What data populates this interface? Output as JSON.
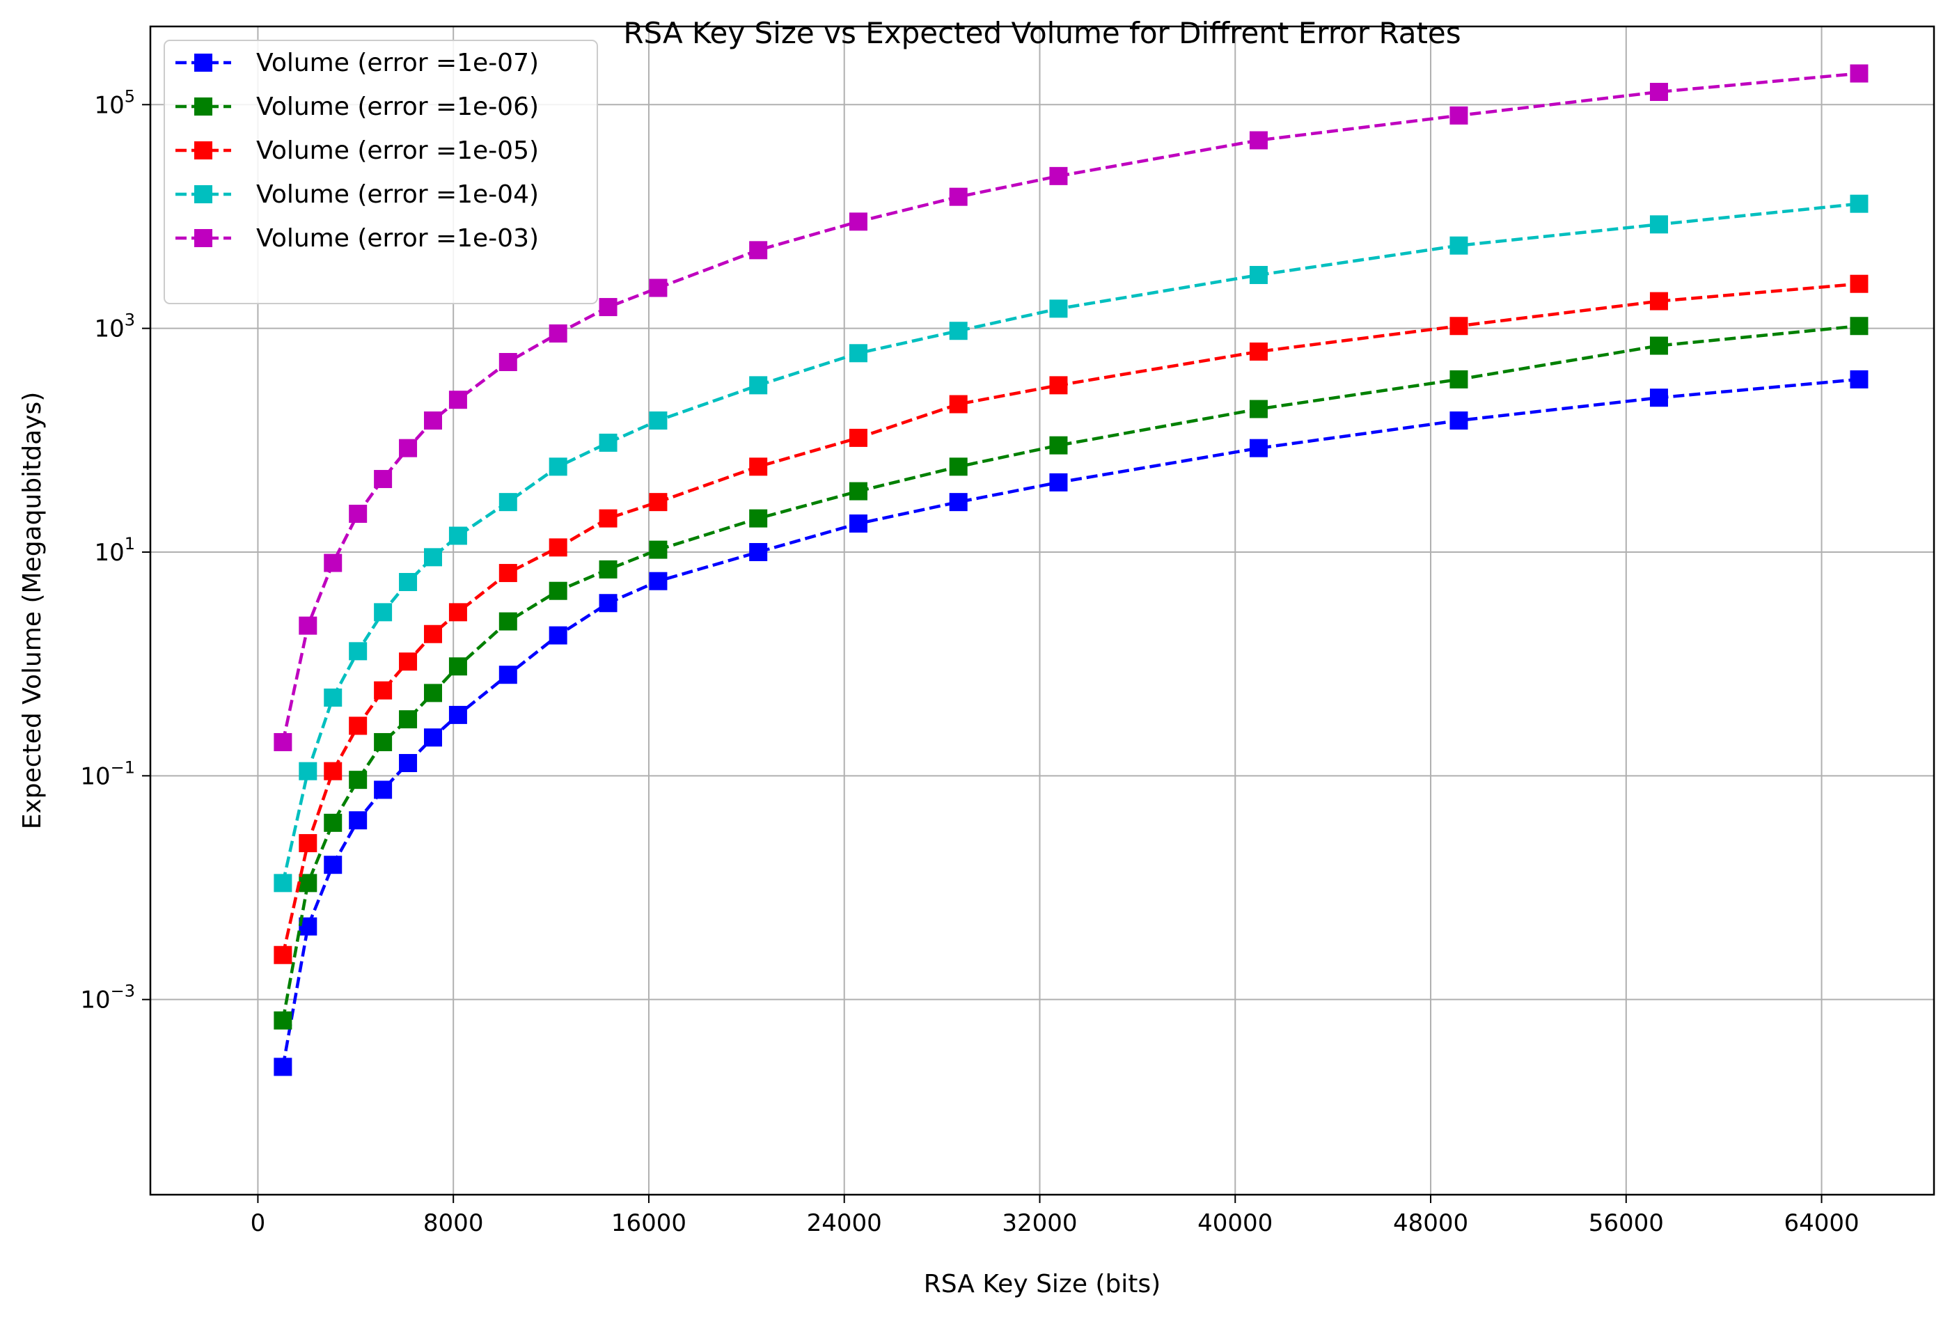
{
  "chart_data": {
    "type": "line",
    "title": "RSA Key Size vs Expected Volume for Diffrent Error Rates",
    "xlabel": "RSA Key Size (bits)",
    "ylabel": "Expected Volume (Megaqubitdays)",
    "xscale": "linear",
    "yscale": "log",
    "xlim": [
      -4400,
      68600
    ],
    "ylim": [
      1.8e-05,
      500000
    ],
    "xticks": [
      0,
      8000,
      16000,
      24000,
      32000,
      40000,
      48000,
      56000,
      64000
    ],
    "xtick_labels": [
      "0",
      "8000",
      "16000",
      "24000",
      "32000",
      "40000",
      "48000",
      "56000",
      "64000"
    ],
    "yticks": [
      0.001,
      0.1,
      10,
      1000,
      100000
    ],
    "ytick_labels": [
      {
        "base": "10",
        "exp": "−3"
      },
      {
        "base": "10",
        "exp": "−1"
      },
      {
        "base": "10",
        "exp": "1"
      },
      {
        "base": "10",
        "exp": "3"
      },
      {
        "base": "10",
        "exp": "5"
      }
    ],
    "grid": true,
    "legend_position": "top-left",
    "x": [
      1024,
      2048,
      3072,
      4096,
      5120,
      6144,
      7168,
      8192,
      10240,
      12288,
      14336,
      16384,
      20480,
      24576,
      28672,
      32768,
      40960,
      49152,
      57344,
      65536
    ],
    "series": [
      {
        "name": "Volume (error =1e-07)",
        "color": "#0000ff",
        "marker": "square",
        "linestyle": "dashed",
        "values": [
          0.00025,
          0.0045,
          0.016,
          0.04,
          0.075,
          0.13,
          0.22,
          0.35,
          0.8,
          1.8,
          3.5,
          5.5,
          10,
          18,
          28,
          42,
          85,
          150,
          240,
          350
        ]
      },
      {
        "name": "Volume (error =1e-06)",
        "color": "#008000",
        "marker": "square",
        "linestyle": "dashed",
        "values": [
          0.00065,
          0.011,
          0.038,
          0.092,
          0.2,
          0.32,
          0.55,
          0.95,
          2.4,
          4.5,
          7,
          10.5,
          20,
          35,
          58,
          90,
          190,
          350,
          700,
          1050
        ]
      },
      {
        "name": "Volume (error =1e-05)",
        "color": "#ff0000",
        "marker": "square",
        "linestyle": "dashed",
        "values": [
          0.0025,
          0.025,
          0.11,
          0.28,
          0.58,
          1.05,
          1.85,
          2.9,
          6.5,
          11,
          20,
          28,
          58,
          105,
          210,
          310,
          620,
          1050,
          1750,
          2500
        ]
      },
      {
        "name": "Volume (error =1e-04)",
        "color": "#00bfbf",
        "marker": "square",
        "linestyle": "dashed",
        "values": [
          0.011,
          0.11,
          0.5,
          1.3,
          2.9,
          5.4,
          9,
          14,
          28,
          58,
          95,
          150,
          310,
          600,
          950,
          1500,
          3000,
          5500,
          8500,
          13000
        ]
      },
      {
        "name": "Volume (error =1e-03)",
        "color": "#bf00bf",
        "marker": "square",
        "linestyle": "dashed",
        "values": [
          0.2,
          2.2,
          8,
          22,
          45,
          85,
          150,
          230,
          500,
          900,
          1550,
          2300,
          5000,
          9000,
          15000,
          23000,
          48000,
          80000,
          130000,
          190000
        ]
      }
    ]
  }
}
